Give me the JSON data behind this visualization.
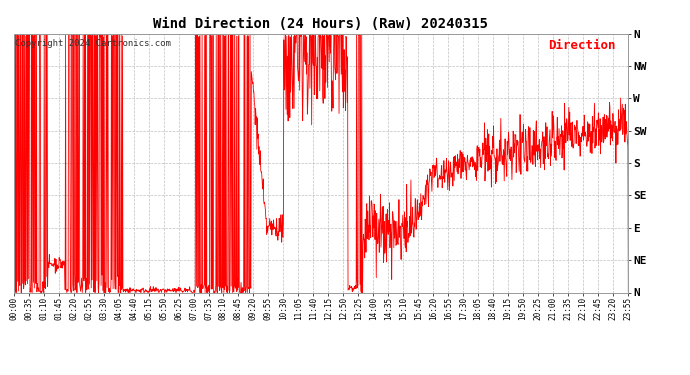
{
  "title": "Wind Direction (24 Hours) (Raw) 20240315",
  "copyright": "Copyright 2024 Cartronics.com",
  "legend_label": "Direction",
  "line_color": "#ff0000",
  "background_color": "#ffffff",
  "grid_color": "#b0b0b0",
  "ytick_labels": [
    "N",
    "NE",
    "E",
    "SE",
    "S",
    "SW",
    "W",
    "NW",
    "N"
  ],
  "ytick_values": [
    0,
    45,
    90,
    135,
    180,
    225,
    270,
    315,
    360
  ],
  "ylim": [
    0,
    360
  ],
  "xlim": [
    0,
    1435
  ],
  "x_tick_interval_minutes": 35,
  "figsize": [
    6.9,
    3.75
  ],
  "dpi": 100
}
